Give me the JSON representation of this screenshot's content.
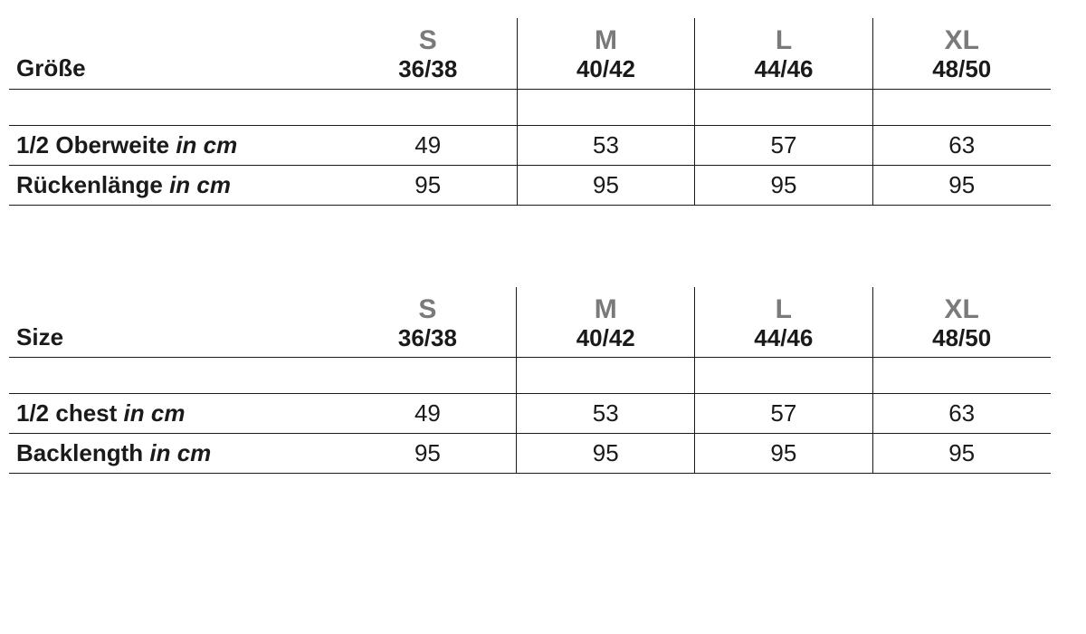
{
  "colors": {
    "background": "#ffffff",
    "text": "#1a1a1a",
    "size_letter": "#7a7a7a",
    "border": "#1a1a1a"
  },
  "typography": {
    "size_letter_pt": 30,
    "size_num_pt": 26,
    "label_pt": 26,
    "cell_pt": 26,
    "font_family": "Segoe UI / Arial"
  },
  "tables": [
    {
      "header_label": "Größe",
      "sizes": [
        {
          "letter": "S",
          "range": "36/38"
        },
        {
          "letter": "M",
          "range": "40/42"
        },
        {
          "letter": "L",
          "range": "44/46"
        },
        {
          "letter": "XL",
          "range": "48/50"
        }
      ],
      "rows": [
        {
          "label": "1/2 Oberweite",
          "unit": "in cm",
          "values": [
            "49",
            "53",
            "57",
            "63"
          ]
        },
        {
          "label": "Rückenlänge",
          "unit": "in cm",
          "values": [
            "95",
            "95",
            "95",
            "95"
          ]
        }
      ]
    },
    {
      "header_label": "Size",
      "sizes": [
        {
          "letter": "S",
          "range": "36/38"
        },
        {
          "letter": "M",
          "range": "40/42"
        },
        {
          "letter": "L",
          "range": "44/46"
        },
        {
          "letter": "XL",
          "range": "48/50"
        }
      ],
      "rows": [
        {
          "label": "1/2 chest",
          "unit": "in cm",
          "values": [
            "49",
            "53",
            "57",
            "63"
          ]
        },
        {
          "label": "Backlength",
          "unit": "in cm",
          "values": [
            "95",
            "95",
            "95",
            "95"
          ]
        }
      ]
    }
  ]
}
